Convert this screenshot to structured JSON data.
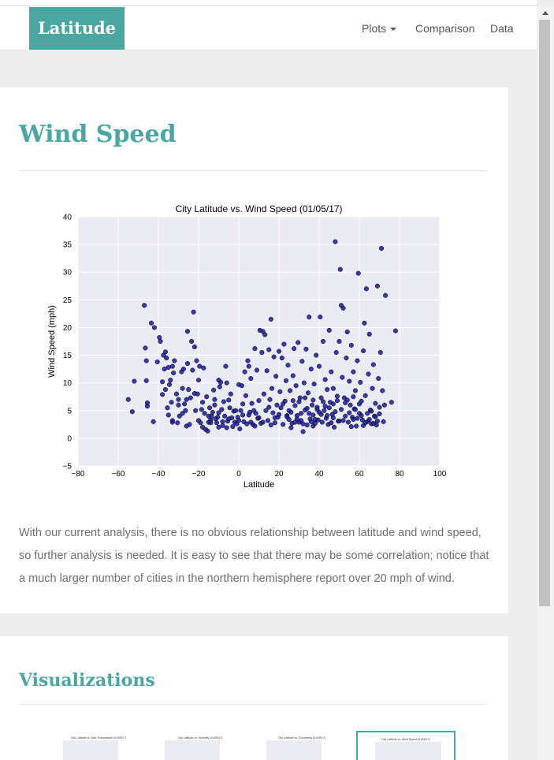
{
  "navbar": {
    "brand": "Latitude",
    "items": [
      {
        "label": "Plots",
        "dropdown": true
      },
      {
        "label": "Comparison",
        "dropdown": false
      },
      {
        "label": "Data",
        "dropdown": false
      }
    ]
  },
  "main": {
    "title": "Wind Speed",
    "description": "With our current analysis, there is no obvious relationship between latitude and wind speed, so further analysis is needed. It is easy to see that there may be some correlation; notice that a much larger number of cities in the northern hemisphere report over 20 mph of wind."
  },
  "visualizations": {
    "title": "Visualizations",
    "thumbnails": [
      {
        "label": "City Latitude vs. Max Temperature (01/05/17)",
        "active": false
      },
      {
        "label": "City Latitude vs. Humidity (01/05/17)",
        "active": false
      },
      {
        "label": "City Latitude vs. Cloudiness (01/05/17)",
        "active": false
      },
      {
        "label": "City Latitude vs. Wind Speed (01/05/17)",
        "active": true
      }
    ]
  },
  "colors": {
    "accent": "#4aa6a0",
    "point": "#1a1aa0",
    "plot_bg": "#eaeaf2"
  },
  "chart_data": {
    "type": "scatter",
    "title": "City Latitude vs. Wind Speed (01/05/17)",
    "xlabel": "Latitude",
    "ylabel": "Wind Speed (mph)",
    "xlim": [
      -80,
      100
    ],
    "ylim": [
      -5,
      40
    ],
    "xticks": [
      "−80",
      "−60",
      "−40",
      "−20",
      "0",
      "20",
      "40",
      "60",
      "80",
      "100"
    ],
    "yticks": [
      "−5",
      "0",
      "5",
      "10",
      "15",
      "20",
      "25",
      "30",
      "35",
      "40"
    ],
    "grid": true,
    "points": [
      [
        -55,
        7
      ],
      [
        -53,
        4.8
      ],
      [
        -52,
        10.3
      ],
      [
        -47,
        24
      ],
      [
        -46.5,
        16.3
      ],
      [
        -46,
        14
      ],
      [
        -46,
        10.4
      ],
      [
        -45.5,
        6.4
      ],
      [
        -45.5,
        5.8
      ],
      [
        -43.5,
        20.8
      ],
      [
        -42.5,
        3
      ],
      [
        -42,
        20
      ],
      [
        -40.5,
        13.8
      ],
      [
        -39.5,
        18.2
      ],
      [
        -39,
        17.5
      ],
      [
        -38,
        10.2
      ],
      [
        -38,
        7.9
      ],
      [
        -37.5,
        15
      ],
      [
        -37,
        12.5
      ],
      [
        -36.5,
        8.8
      ],
      [
        -36.5,
        15.6
      ],
      [
        -36,
        14.5
      ],
      [
        -35.5,
        5.5
      ],
      [
        -35,
        4.2
      ],
      [
        -35,
        12.8
      ],
      [
        -34.5,
        9.7
      ],
      [
        -34,
        10.5
      ],
      [
        -33.5,
        6.5
      ],
      [
        -33,
        3.2
      ],
      [
        -33,
        2.9
      ],
      [
        -33,
        13
      ],
      [
        -32.5,
        11.8
      ],
      [
        -32,
        14
      ],
      [
        -31,
        8
      ],
      [
        -30.5,
        2.8
      ],
      [
        -30,
        7
      ],
      [
        -29.5,
        4
      ],
      [
        -28.5,
        12
      ],
      [
        -28,
        9
      ],
      [
        -27.5,
        12.5
      ],
      [
        -27,
        6.2
      ],
      [
        -26.5,
        5
      ],
      [
        -26,
        7
      ],
      [
        -25.5,
        19.3
      ],
      [
        -25.5,
        13.5
      ],
      [
        -25,
        8.8
      ],
      [
        -24.5,
        2.5
      ],
      [
        -24,
        7.3
      ],
      [
        -23.5,
        17.5
      ],
      [
        -23,
        12.3
      ],
      [
        -22.5,
        22.8
      ],
      [
        -22,
        16.5
      ],
      [
        -22,
        8.1
      ],
      [
        -21.5,
        5
      ],
      [
        -21,
        14
      ],
      [
        -20.5,
        8
      ],
      [
        -20,
        10.5
      ],
      [
        -19.5,
        13
      ],
      [
        -19,
        2.8
      ],
      [
        -18.5,
        5.2
      ],
      [
        -18,
        2
      ],
      [
        -17.5,
        12.7
      ],
      [
        -17,
        4.5
      ],
      [
        -16.5,
        1.6
      ],
      [
        -16,
        7.5
      ],
      [
        -15.5,
        1.3
      ],
      [
        -15,
        2.9
      ],
      [
        -14.5,
        5.5
      ],
      [
        -14,
        3.3
      ],
      [
        -13.5,
        4
      ],
      [
        -13,
        4.7
      ],
      [
        -12.5,
        8.7
      ],
      [
        -12,
        6
      ],
      [
        -11.5,
        3.5
      ],
      [
        -11,
        2.8
      ],
      [
        -10.5,
        3.8
      ],
      [
        -10,
        2
      ],
      [
        -10,
        10.5
      ],
      [
        -9.5,
        9.3
      ],
      [
        -9,
        10.1
      ],
      [
        -8.5,
        5.2
      ],
      [
        -8,
        2.3
      ],
      [
        -7.5,
        6.6
      ],
      [
        -7,
        4
      ],
      [
        -6.5,
        13
      ],
      [
        -6,
        10
      ],
      [
        -5.5,
        3.1
      ],
      [
        -5,
        6.9
      ],
      [
        -4.5,
        5.5
      ],
      [
        -4,
        8
      ],
      [
        -3.5,
        3.7
      ],
      [
        -3,
        2.1
      ],
      [
        -2.5,
        4.9
      ],
      [
        -2,
        2.9
      ],
      [
        -1.5,
        5
      ],
      [
        -1,
        2.6
      ],
      [
        -0.5,
        3.8
      ],
      [
        0,
        9.7
      ],
      [
        0.5,
        1.7
      ],
      [
        1,
        5
      ],
      [
        1.5,
        9.5
      ],
      [
        2,
        4.2
      ],
      [
        2.5,
        3
      ],
      [
        3,
        12
      ],
      [
        3.5,
        7.7
      ],
      [
        4,
        2.6
      ],
      [
        4.5,
        14
      ],
      [
        5,
        13
      ],
      [
        5.5,
        4.7
      ],
      [
        6,
        10.8
      ],
      [
        6.5,
        6.3
      ],
      [
        7,
        2.5
      ],
      [
        7.5,
        5
      ],
      [
        8,
        16.2
      ],
      [
        8.5,
        4.5
      ],
      [
        9,
        12.3
      ],
      [
        9.5,
        3.6
      ],
      [
        10,
        6.8
      ],
      [
        10.5,
        19.5
      ],
      [
        11,
        2.7
      ],
      [
        11.5,
        15.5
      ],
      [
        12,
        19.3
      ],
      [
        12.5,
        8
      ],
      [
        13,
        18.7
      ],
      [
        13.5,
        5
      ],
      [
        14,
        12.2
      ],
      [
        14.5,
        3.2
      ],
      [
        15,
        16
      ],
      [
        15.5,
        7
      ],
      [
        16,
        21.5
      ],
      [
        16.5,
        9
      ],
      [
        17,
        4.6
      ],
      [
        17.5,
        14.7
      ],
      [
        18,
        2.8
      ],
      [
        18.5,
        11.2
      ],
      [
        19,
        6
      ],
      [
        19.5,
        3.8
      ],
      [
        20,
        15.7
      ],
      [
        20.5,
        8.4
      ],
      [
        21,
        5.5
      ],
      [
        21.5,
        14.5
      ],
      [
        22,
        2.5
      ],
      [
        22.5,
        17
      ],
      [
        23,
        6.7
      ],
      [
        23.5,
        10.4
      ],
      [
        24,
        4.1
      ],
      [
        24.5,
        13.2
      ],
      [
        25,
        3.4
      ],
      [
        25.5,
        8.6
      ],
      [
        26,
        4.7
      ],
      [
        26.5,
        2.7
      ],
      [
        27,
        11.3
      ],
      [
        27.5,
        16.2
      ],
      [
        28,
        5.9
      ],
      [
        28.5,
        9.5
      ],
      [
        29,
        3.5
      ],
      [
        29.5,
        17.3
      ],
      [
        30,
        2.9
      ],
      [
        30.5,
        7.3
      ],
      [
        31,
        4.5
      ],
      [
        31.5,
        13.9
      ],
      [
        32,
        1.2
      ],
      [
        32.5,
        10
      ],
      [
        33,
        5.1
      ],
      [
        33.5,
        16.1
      ],
      [
        34,
        2.4
      ],
      [
        34.5,
        8.2
      ],
      [
        35,
        21.9
      ],
      [
        35.5,
        3.5
      ],
      [
        36,
        12.5
      ],
      [
        36.5,
        6
      ],
      [
        37,
        4.2
      ],
      [
        37.5,
        9.8
      ],
      [
        38,
        2.7
      ],
      [
        38.5,
        15
      ],
      [
        39,
        5.6
      ],
      [
        39.5,
        3.3
      ],
      [
        40,
        13
      ],
      [
        40.5,
        21.9
      ],
      [
        41,
        7.3
      ],
      [
        41.5,
        2.9
      ],
      [
        42,
        17.5
      ],
      [
        42.5,
        5
      ],
      [
        43,
        10.6
      ],
      [
        43.5,
        3.6
      ],
      [
        44,
        8.8
      ],
      [
        44.5,
        2.5
      ],
      [
        45,
        19.5
      ],
      [
        45.5,
        6.5
      ],
      [
        46,
        12
      ],
      [
        46.5,
        4.3
      ],
      [
        47,
        9
      ],
      [
        47.5,
        2
      ],
      [
        48,
        35.5
      ],
      [
        48.5,
        15.5
      ],
      [
        49,
        6.8
      ],
      [
        49.5,
        3.1
      ],
      [
        50,
        17.5
      ],
      [
        50.5,
        30.5
      ],
      [
        51,
        24
      ],
      [
        51.5,
        11
      ],
      [
        52,
        23.5
      ],
      [
        52.5,
        7.3
      ],
      [
        53,
        4
      ],
      [
        53.5,
        14.5
      ],
      [
        54,
        19.2
      ],
      [
        54.5,
        2.9
      ],
      [
        55,
        10.3
      ],
      [
        55.5,
        6
      ],
      [
        56,
        16.8
      ],
      [
        56.5,
        3.8
      ],
      [
        57,
        12
      ],
      [
        57.5,
        5.3
      ],
      [
        58,
        8.6
      ],
      [
        58.5,
        2.2
      ],
      [
        59,
        14
      ],
      [
        59.5,
        29.8
      ],
      [
        60,
        4.5
      ],
      [
        60.5,
        10.1
      ],
      [
        61,
        6.7
      ],
      [
        61.5,
        3.3
      ],
      [
        62,
        15.8
      ],
      [
        62.5,
        20.8
      ],
      [
        63,
        7.7
      ],
      [
        63.5,
        27
      ],
      [
        64,
        3
      ],
      [
        64.5,
        11.6
      ],
      [
        65,
        18.8
      ],
      [
        65.5,
        5.1
      ],
      [
        66,
        2.6
      ],
      [
        66.5,
        9
      ],
      [
        67,
        13.3
      ],
      [
        67.5,
        4
      ],
      [
        68,
        6.3
      ],
      [
        68.5,
        2.4
      ],
      [
        69,
        27.5
      ],
      [
        69.5,
        10.8
      ],
      [
        70,
        4.4
      ],
      [
        70.5,
        15.5
      ],
      [
        71,
        34.3
      ],
      [
        71.5,
        8.6
      ],
      [
        72,
        3
      ],
      [
        72.5,
        6
      ],
      [
        73,
        25.8
      ],
      [
        76,
        6.5
      ],
      [
        78,
        19.4
      ],
      [
        -30,
        6
      ],
      [
        -15,
        4
      ],
      [
        -5,
        3.5
      ],
      [
        5,
        4.2
      ],
      [
        15,
        5.6
      ],
      [
        25,
        5
      ],
      [
        35,
        4.5
      ],
      [
        45,
        5.5
      ],
      [
        55,
        4.6
      ],
      [
        65,
        3.4
      ],
      [
        -28,
        4.5
      ],
      [
        -18,
        6.5
      ],
      [
        -8,
        3
      ],
      [
        8,
        2.2
      ],
      [
        18,
        3.7
      ],
      [
        28,
        2.9
      ],
      [
        38,
        3.4
      ],
      [
        48,
        4.8
      ],
      [
        58,
        5.2
      ],
      [
        68,
        3.9
      ],
      [
        -20,
        3.2
      ],
      [
        -10,
        4.6
      ],
      [
        0,
        3.2
      ],
      [
        10,
        3.7
      ],
      [
        20,
        4.3
      ],
      [
        30,
        6.6
      ],
      [
        40,
        4.7
      ],
      [
        50,
        3.1
      ],
      [
        60,
        6.2
      ],
      [
        70,
        5.6
      ],
      [
        -12,
        7
      ],
      [
        2,
        6.2
      ],
      [
        12,
        2.9
      ],
      [
        22,
        6.2
      ],
      [
        32,
        2.6
      ],
      [
        42,
        6.6
      ],
      [
        52,
        3.2
      ],
      [
        62,
        2.3
      ],
      [
        24,
        3.9
      ],
      [
        34,
        5.4
      ],
      [
        44,
        4.1
      ],
      [
        54,
        6.9
      ],
      [
        64,
        4.5
      ],
      [
        26,
        1.9
      ],
      [
        36,
        3
      ],
      [
        46,
        2.8
      ],
      [
        56,
        2.1
      ],
      [
        66,
        4.9
      ],
      [
        29,
        4.1
      ],
      [
        39,
        5.2
      ],
      [
        49,
        7.6
      ],
      [
        59,
        3.6
      ],
      [
        31,
        3.2
      ],
      [
        41,
        4.3
      ],
      [
        51,
        5.2
      ],
      [
        61,
        4.1
      ],
      [
        33,
        7.3
      ],
      [
        43,
        5.8
      ],
      [
        53,
        6.4
      ],
      [
        63,
        2.8
      ],
      [
        37,
        2.2
      ],
      [
        47,
        3.7
      ],
      [
        57,
        7.5
      ],
      [
        67,
        2.7
      ],
      [
        -26,
        2.2
      ],
      [
        -14,
        2.8
      ],
      [
        -6,
        1.9
      ],
      [
        6,
        2.9
      ],
      [
        16,
        2.4
      ],
      [
        27,
        6.8
      ],
      [
        37,
        6.9
      ],
      [
        47,
        6.2
      ],
      [
        57,
        3.4
      ],
      [
        69,
        3.1
      ]
    ]
  }
}
